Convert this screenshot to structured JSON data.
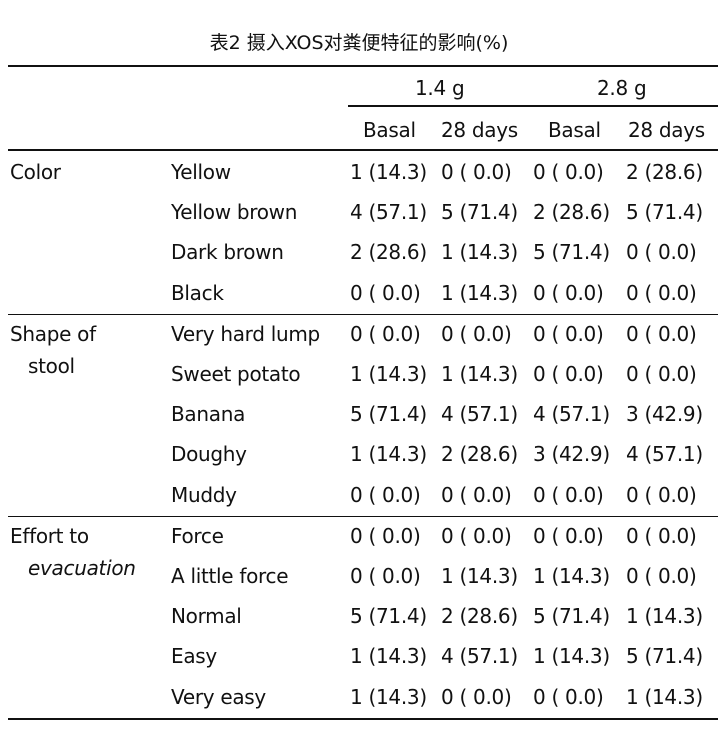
{
  "title": "表2 摄入XOS对粪便特征的影响(%)",
  "header": {
    "groups": [
      "1.4 g",
      "2.8 g"
    ],
    "subcolumns": [
      "Basal",
      "28 days",
      "Basal",
      "28 days"
    ]
  },
  "sections": [
    {
      "category": [
        "Color"
      ],
      "rows": [
        {
          "item": "Yellow",
          "values": [
            "1 (14.3)",
            "0 ( 0.0)",
            "0 ( 0.0)",
            "2 (28.6)"
          ]
        },
        {
          "item": "Yellow brown",
          "values": [
            "4 (57.1)",
            "5 (71.4)",
            "2 (28.6)",
            "5 (71.4)"
          ]
        },
        {
          "item": "Dark brown",
          "values": [
            "2 (28.6)",
            "1 (14.3)",
            "5 (71.4)",
            "0 ( 0.0)"
          ]
        },
        {
          "item": "Black",
          "values": [
            "0 ( 0.0)",
            "1 (14.3)",
            "0 ( 0.0)",
            "0 ( 0.0)"
          ]
        }
      ]
    },
    {
      "category": [
        "Shape of",
        "stool"
      ],
      "rows": [
        {
          "item": "Very hard lump",
          "values": [
            "0 ( 0.0)",
            "0 ( 0.0)",
            "0 ( 0.0)",
            "0 ( 0.0)"
          ]
        },
        {
          "item": "Sweet potato",
          "values": [
            "1 (14.3)",
            "1 (14.3)",
            "0 ( 0.0)",
            "0 ( 0.0)"
          ]
        },
        {
          "item": "Banana",
          "values": [
            "5 (71.4)",
            "4 (57.1)",
            "4 (57.1)",
            "3 (42.9)"
          ]
        },
        {
          "item": "Doughy",
          "values": [
            "1 (14.3)",
            "2 (28.6)",
            "3 (42.9)",
            "4 (57.1)"
          ]
        },
        {
          "item": "Muddy",
          "values": [
            "0 ( 0.0)",
            "0 ( 0.0)",
            "0 ( 0.0)",
            "0 ( 0.0)"
          ]
        }
      ]
    },
    {
      "category": [
        "Effort to",
        "evacuation"
      ],
      "rows": [
        {
          "item": "Force",
          "values": [
            "0 ( 0.0)",
            "0 ( 0.0)",
            "0 ( 0.0)",
            "0 ( 0.0)"
          ]
        },
        {
          "item": "A little force",
          "values": [
            "0 ( 0.0)",
            "1 (14.3)",
            "1 (14.3)",
            "0 ( 0.0)"
          ]
        },
        {
          "item": "Normal",
          "values": [
            "5 (71.4)",
            "2 (28.6)",
            "5 (71.4)",
            "1 (14.3)"
          ]
        },
        {
          "item": "Easy",
          "values": [
            "1 (14.3)",
            "4 (57.1)",
            "1 (14.3)",
            "5 (71.4)"
          ]
        },
        {
          "item": "Very easy",
          "values": [
            "1 (14.3)",
            "0 ( 0.0)",
            "0 ( 0.0)",
            "1 (14.3)"
          ]
        }
      ]
    }
  ]
}
